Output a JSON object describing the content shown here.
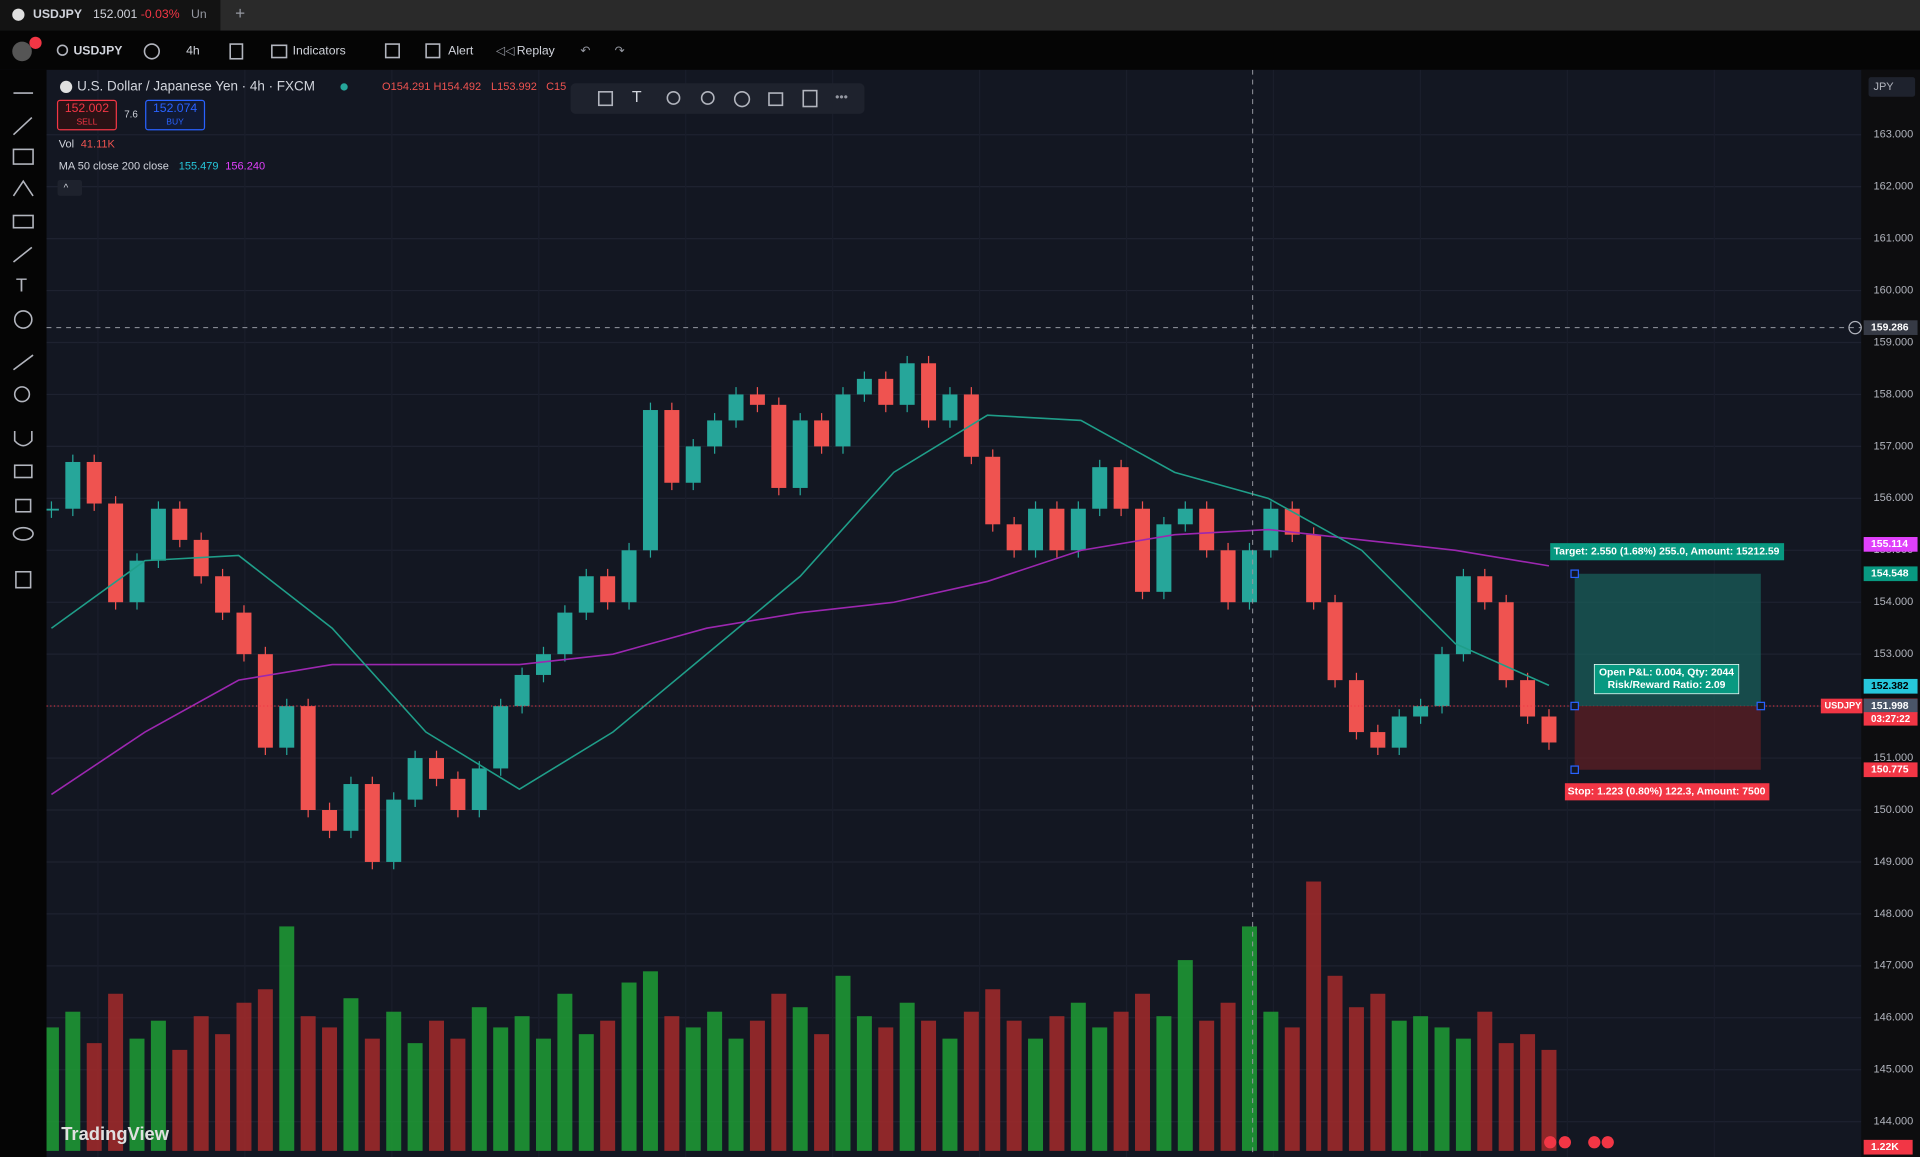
{
  "tab": {
    "symbol": "USDJPY",
    "price": "152.001",
    "change": "-0.03%",
    "tail": "Un"
  },
  "toolbar": {
    "symbol": "USDJPY",
    "interval": "4h",
    "indicators": "Indicators",
    "alert": "Alert",
    "replay": "Replay"
  },
  "legend": {
    "title": "U.S. Dollar / Japanese Yen · 4h · FXCM",
    "ohlc": [
      "O154.291",
      "H154.492",
      "L153.992",
      "C15"
    ],
    "sell_price": "152.002",
    "sell": "SELL",
    "spread": "7.6",
    "buy_price": "152.074",
    "buy": "BUY",
    "vol": "Vol",
    "vol_value": "41.11K",
    "ma": "MA 50 close 200 close",
    "ma50_value": "155.479",
    "ma200_value": "156.240"
  },
  "chart": {
    "type": "candlestick",
    "ylim": [
      143.32,
      164.25
    ],
    "price_ticks": [
      {
        "value": 163,
        "label": "163.000"
      },
      {
        "value": 162,
        "label": "162.000"
      },
      {
        "value": 161,
        "label": "161.000"
      },
      {
        "value": 160,
        "label": "160.000"
      },
      {
        "value": 159,
        "label": "159.000"
      },
      {
        "value": 158,
        "label": "158.000"
      },
      {
        "value": 157,
        "label": "157.000"
      },
      {
        "value": 156,
        "label": "156.000"
      },
      {
        "value": 155,
        "label": "155.000"
      },
      {
        "value": 154,
        "label": "154.000"
      },
      {
        "value": 153,
        "label": "153.000"
      },
      {
        "value": 152,
        "label": "152.000"
      },
      {
        "value": 151,
        "label": "151.000"
      },
      {
        "value": 150,
        "label": "150.000"
      },
      {
        "value": 149,
        "label": "149.000"
      },
      {
        "value": 148,
        "label": "148.000"
      },
      {
        "value": 147,
        "label": "147.000"
      },
      {
        "value": 146,
        "label": "146.000"
      },
      {
        "value": 145,
        "label": "145.000"
      },
      {
        "value": 144,
        "label": "144.000"
      }
    ],
    "closes": [
      155.8,
      156.7,
      155.9,
      154.0,
      154.8,
      155.8,
      155.2,
      154.5,
      153.8,
      153.0,
      151.2,
      152.0,
      150.0,
      149.6,
      150.5,
      149.0,
      150.2,
      151.0,
      150.6,
      150.0,
      150.8,
      152.0,
      152.6,
      153.0,
      153.8,
      154.5,
      154.0,
      155.0,
      157.7,
      156.3,
      157.0,
      157.5,
      158.0,
      157.8,
      156.2,
      157.5,
      157.0,
      158.0,
      158.3,
      157.8,
      158.6,
      157.5,
      158.0,
      156.8,
      155.5,
      155.0,
      155.8,
      155.0,
      155.8,
      156.6,
      155.8,
      154.2,
      155.5,
      155.8,
      155.0,
      154.0,
      155.0,
      155.8,
      155.3,
      154.0,
      152.5,
      151.5,
      151.2,
      151.8,
      152.0,
      153.0,
      154.5,
      154.0,
      152.5,
      151.8,
      151.3
    ],
    "volumes": [
      0.55,
      0.62,
      0.48,
      0.7,
      0.5,
      0.58,
      0.45,
      0.6,
      0.52,
      0.66,
      0.72,
      1.0,
      0.6,
      0.55,
      0.68,
      0.5,
      0.62,
      0.48,
      0.58,
      0.5,
      0.64,
      0.55,
      0.6,
      0.5,
      0.7,
      0.52,
      0.58,
      0.75,
      0.8,
      0.6,
      0.55,
      0.62,
      0.5,
      0.58,
      0.7,
      0.64,
      0.52,
      0.78,
      0.6,
      0.55,
      0.66,
      0.58,
      0.5,
      0.62,
      0.72,
      0.58,
      0.5,
      0.6,
      0.66,
      0.55,
      0.62,
      0.7,
      0.6,
      0.85,
      0.58,
      0.66,
      1.0,
      0.62,
      0.55,
      1.2,
      0.78,
      0.64,
      0.7,
      0.58,
      0.6,
      0.55,
      0.5,
      0.62,
      0.48,
      0.52,
      0.45
    ],
    "ma50": [
      153.5,
      154.8,
      154.9,
      153.5,
      151.5,
      150.4,
      151.5,
      153.0,
      154.5,
      156.5,
      157.6,
      157.5,
      156.5,
      156.0,
      155.0,
      153.2,
      152.4
    ],
    "ma200": [
      150.3,
      151.5,
      152.5,
      152.8,
      152.8,
      152.8,
      153.0,
      153.5,
      153.8,
      154.0,
      154.4,
      155.0,
      155.3,
      155.4,
      155.2,
      155.0,
      154.7
    ],
    "colors": {
      "up": "#26a69a",
      "down": "#ef5350",
      "vol_up": "#1f9e35",
      "vol_down": "#a52a2a",
      "ma50": "#1f9e89",
      "ma200": "#9c27b0"
    }
  },
  "levels": {
    "crosshair": 159.286,
    "ma200_tag": 155.114,
    "target": 154.548,
    "ma50_tag": 152.382,
    "entry": 152.002,
    "bid": 151.998,
    "stop": 150.775,
    "symbol_tag": "USDJPY",
    "countdown": "03:27:22",
    "currency": "JPY",
    "volume_tag": "1.22K"
  },
  "position": {
    "target_text": "Target: 2.550 (1.68%) 255.0, Amount: 15212.59",
    "stop_text": "Stop: 1.223 (0.80%) 122.3, Amount: 7500",
    "pnl_text": "Open P&L: 0.004, Qty: 2044",
    "rr_text": "Risk/Reward Ratio: 2.09"
  },
  "brand": "TradingView"
}
